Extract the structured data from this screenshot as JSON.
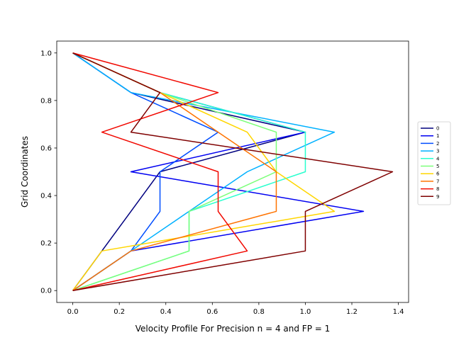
{
  "chart_data": {
    "type": "line",
    "xlabel": "Velocity Profile For Precision n = 4 and FP = 1",
    "ylabel": "Grid Coordinates",
    "xlim": [
      -0.069,
      1.444
    ],
    "ylim": [
      -0.05,
      1.05
    ],
    "xticks": [
      0.0,
      0.2,
      0.4,
      0.6,
      0.8,
      1.0,
      1.2,
      1.4
    ],
    "xtick_labels": [
      "0.0",
      "0.2",
      "0.4",
      "0.6",
      "0.8",
      "1.0",
      "1.2",
      "1.4"
    ],
    "yticks": [
      0.0,
      0.2,
      0.4,
      0.6,
      0.8,
      1.0
    ],
    "ytick_labels": [
      "0.0",
      "0.2",
      "0.4",
      "0.6",
      "0.8",
      "1.0"
    ],
    "grid": false,
    "legend_position": "right",
    "y": [
      0,
      0.1667,
      0.3333,
      0.5,
      0.6667,
      0.8333,
      1.0
    ],
    "series": [
      {
        "name": "0",
        "color": "#00007f",
        "x": [
          0,
          0.125,
          0.25,
          0.375,
          1.0,
          0.25,
          0
        ]
      },
      {
        "name": "1",
        "color": "#0000f1",
        "x": [
          0,
          0.25,
          1.25,
          0.25,
          1.0,
          0.375,
          0
        ]
      },
      {
        "name": "2",
        "color": "#004dff",
        "x": [
          0,
          0.25,
          0.375,
          0.375,
          0.625,
          0.25,
          0
        ]
      },
      {
        "name": "3",
        "color": "#00b1ff",
        "x": [
          0,
          0.25,
          0.5,
          0.75,
          1.125,
          0.25,
          0
        ]
      },
      {
        "name": "4",
        "color": "#29ffce",
        "x": [
          0,
          0.5,
          0.5,
          1.0,
          1.0,
          0.375,
          0
        ]
      },
      {
        "name": "5",
        "color": "#7dff7a",
        "x": [
          0,
          0.5,
          0.5,
          0.875,
          0.875,
          0.375,
          0
        ]
      },
      {
        "name": "6",
        "color": "#ffd600",
        "x": [
          0,
          0.125,
          1.125,
          0.875,
          0.75,
          0.375,
          0
        ]
      },
      {
        "name": "7",
        "color": "#ff7300",
        "x": [
          0,
          0.25,
          0.875,
          0.875,
          0.625,
          0.375,
          0
        ]
      },
      {
        "name": "8",
        "color": "#f10800",
        "x": [
          0,
          0.75,
          0.625,
          0.625,
          0.125,
          0.625,
          0
        ]
      },
      {
        "name": "9",
        "color": "#7f0000",
        "x": [
          0,
          1.0,
          1.0,
          1.375,
          0.25,
          0.375,
          0
        ]
      }
    ]
  }
}
